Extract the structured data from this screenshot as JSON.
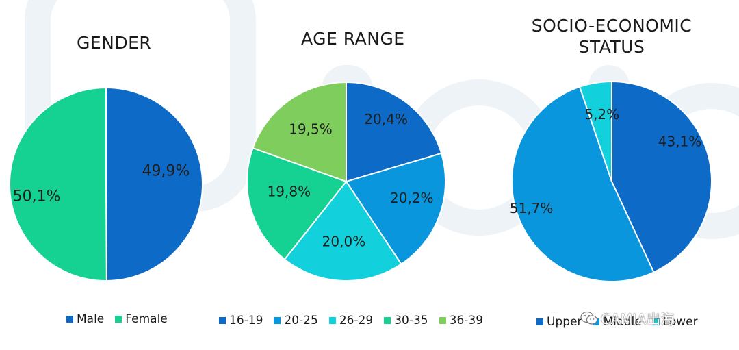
{
  "colors": {
    "dark_blue": "#0e6ac7",
    "mid_blue": "#0a96dc",
    "cyan": "#12d0dc",
    "green": "#15d192",
    "light_green": "#7fcd5d",
    "watermark": "#eef3f8"
  },
  "chart_data": [
    {
      "type": "pie",
      "title": "GENDER",
      "categories": [
        "Male",
        "Female"
      ],
      "values": [
        49.9,
        50.1
      ],
      "labels": [
        "49,9%",
        "50,1%"
      ],
      "colors": [
        "#0e6ac7",
        "#15d192"
      ],
      "legend": "bottom"
    },
    {
      "type": "pie",
      "title": "AGE RANGE",
      "categories": [
        "16-19",
        "20-25",
        "26-29",
        "30-35",
        "36-39"
      ],
      "values": [
        20.4,
        20.2,
        20.0,
        19.8,
        19.5
      ],
      "labels": [
        "20,4%",
        "20,2%",
        "20,0%",
        "19,8%",
        "19,5%"
      ],
      "colors": [
        "#0e6ac7",
        "#0a96dc",
        "#12d0dc",
        "#15d192",
        "#7fcd5d"
      ],
      "legend": "bottom"
    },
    {
      "type": "pie",
      "title_lines": [
        "SOCIO-ECONOMIC",
        "STATUS"
      ],
      "categories": [
        "Upper",
        "Middle",
        "Lower"
      ],
      "values": [
        43.1,
        51.7,
        5.2
      ],
      "labels": [
        "43,1%",
        "51,7%",
        "5,2%"
      ],
      "colors": [
        "#0e6ac7",
        "#0a96dc",
        "#12d0dc"
      ],
      "legend": "bottom"
    }
  ],
  "watermark": {
    "text": "CAMIA出海",
    "icon": "wechat-icon"
  }
}
